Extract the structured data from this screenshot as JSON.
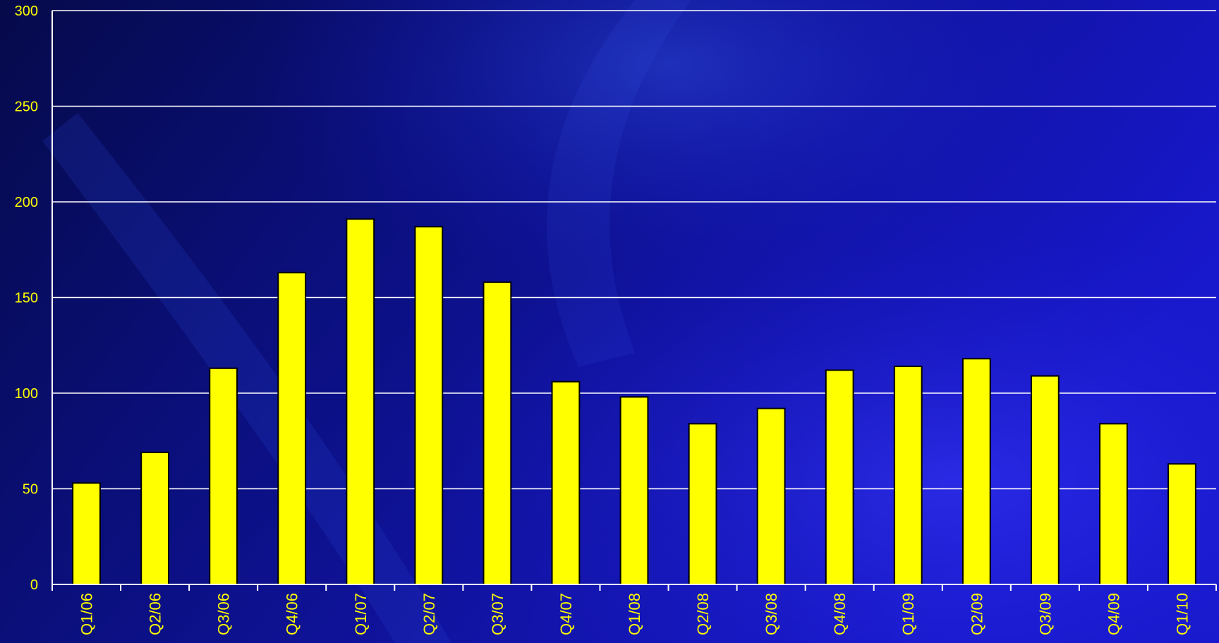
{
  "chart_data": {
    "type": "bar",
    "title": "",
    "xlabel": "",
    "ylabel": "",
    "ylim": [
      0,
      300
    ],
    "yticks": [
      0,
      50,
      100,
      150,
      200,
      250,
      300
    ],
    "grid": true,
    "categories": [
      "Q1/06",
      "Q2/06",
      "Q3/06",
      "Q4/06",
      "Q1/07",
      "Q2/07",
      "Q3/07",
      "Q4/07",
      "Q1/08",
      "Q2/08",
      "Q3/08",
      "Q4/08",
      "Q1/09",
      "Q2/09",
      "Q3/09",
      "Q4/09",
      "Q1/10"
    ],
    "values": [
      53,
      69,
      113,
      163,
      191,
      187,
      158,
      106,
      98,
      84,
      92,
      112,
      114,
      118,
      109,
      84,
      63
    ]
  },
  "colors": {
    "background": "#0a0a7a",
    "bar_fill": "#ffff00",
    "bar_stroke": "#000000",
    "gridline": "#ffffff",
    "label": "#ffff00"
  }
}
